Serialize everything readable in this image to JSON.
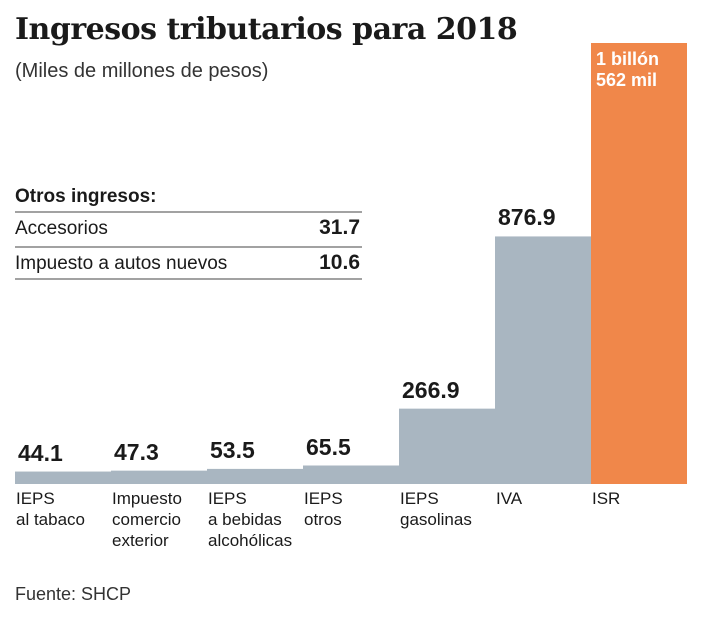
{
  "chart_data": {
    "type": "bar",
    "title": "Ingresos tributarios para 2018",
    "subtitle": "(Miles de millones de pesos)",
    "categories": [
      "IEPS\nal tabaco",
      "Impuesto\ncomercio\nexterior",
      "IEPS\na bebidas\nalcohólicas",
      "IEPS\notros",
      "IEPS\ngasolinas",
      "IVA",
      "ISR"
    ],
    "values": [
      44.1,
      47.3,
      53.5,
      65.5,
      266.9,
      876.9,
      1562
    ],
    "value_labels": [
      "44.1",
      "47.3",
      "53.5",
      "65.5",
      "266.9",
      "876.9",
      "1 billón\n562 mil"
    ],
    "colors": [
      "#a9b6c1",
      "#a9b6c1",
      "#a9b6c1",
      "#a9b6c1",
      "#a9b6c1",
      "#a9b6c1",
      "#f0874a"
    ],
    "inset_table": {
      "title": "Otros ingresos:",
      "rows": [
        [
          "Accesorios",
          "31.7"
        ],
        [
          "Impuesto a autos nuevos",
          "10.6"
        ]
      ]
    },
    "source": "Fuente: SHCP"
  }
}
